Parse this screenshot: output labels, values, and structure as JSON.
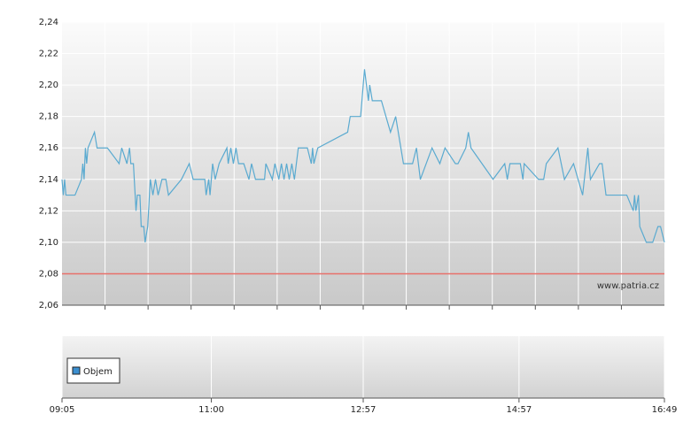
{
  "chart_data": {
    "type": "line",
    "color": "#5aaad0",
    "x": [
      "09:05",
      "09:06",
      "09:07",
      "09:08",
      "09:15",
      "09:20",
      "09:21",
      "09:22",
      "09:23",
      "09:24",
      "09:25",
      "09:30",
      "09:32",
      "09:40",
      "09:49",
      "09:51",
      "09:55",
      "09:57",
      "09:58",
      "10:00",
      "10:02",
      "10:03",
      "10:05",
      "10:06",
      "10:08",
      "10:09",
      "10:11",
      "10:13",
      "10:15",
      "10:17",
      "10:19",
      "10:22",
      "10:25",
      "10:27",
      "10:37",
      "10:43",
      "10:46",
      "10:55",
      "10:56",
      "10:58",
      "10:59",
      "11:01",
      "11:03",
      "11:06",
      "11:12",
      "11:13",
      "11:15",
      "11:17",
      "11:19",
      "11:21",
      "11:25",
      "11:29",
      "11:31",
      "11:34",
      "11:41",
      "11:42",
      "11:47",
      "11:49",
      "11:52",
      "11:54",
      "11:56",
      "11:58",
      "12:00",
      "12:02",
      "12:04",
      "12:07",
      "12:14",
      "12:17",
      "12:18",
      "12:19",
      "12:22",
      "12:45",
      "12:47",
      "12:55",
      "12:58",
      "13:01",
      "13:02",
      "13:04",
      "13:11",
      "13:18",
      "13:22",
      "13:28",
      "13:35",
      "13:38",
      "13:41",
      "13:50",
      "13:56",
      "14:00",
      "14:08",
      "14:10",
      "14:16",
      "14:18",
      "14:20",
      "14:37",
      "14:46",
      "14:48",
      "14:50",
      "14:58",
      "15:00",
      "15:01",
      "15:12",
      "15:16",
      "15:18",
      "15:27",
      "15:32",
      "15:39",
      "15:46",
      "15:50",
      "15:52",
      "15:59",
      "16:01",
      "16:04",
      "16:20",
      "16:25",
      "16:26",
      "16:27",
      "16:29",
      "16:30",
      "16:35",
      "16:40",
      "16:44",
      "16:46",
      "16:49"
    ],
    "values": [
      2.14,
      2.13,
      2.14,
      2.13,
      2.13,
      2.14,
      2.15,
      2.14,
      2.16,
      2.15,
      2.16,
      2.17,
      2.16,
      2.16,
      2.15,
      2.16,
      2.15,
      2.16,
      2.15,
      2.15,
      2.12,
      2.13,
      2.13,
      2.11,
      2.11,
      2.1,
      2.11,
      2.14,
      2.13,
      2.14,
      2.13,
      2.14,
      2.14,
      2.13,
      2.14,
      2.15,
      2.14,
      2.14,
      2.13,
      2.14,
      2.13,
      2.15,
      2.14,
      2.15,
      2.16,
      2.15,
      2.16,
      2.15,
      2.16,
      2.15,
      2.15,
      2.14,
      2.15,
      2.14,
      2.14,
      2.15,
      2.14,
      2.15,
      2.14,
      2.15,
      2.14,
      2.15,
      2.14,
      2.15,
      2.14,
      2.16,
      2.16,
      2.15,
      2.16,
      2.15,
      2.16,
      2.17,
      2.18,
      2.18,
      2.21,
      2.19,
      2.2,
      2.19,
      2.19,
      2.17,
      2.18,
      2.15,
      2.15,
      2.16,
      2.14,
      2.16,
      2.15,
      2.16,
      2.15,
      2.15,
      2.16,
      2.17,
      2.16,
      2.14,
      2.15,
      2.14,
      2.15,
      2.15,
      2.14,
      2.15,
      2.14,
      2.14,
      2.15,
      2.16,
      2.14,
      2.15,
      2.13,
      2.16,
      2.14,
      2.15,
      2.15,
      2.13,
      2.13,
      2.12,
      2.13,
      2.12,
      2.13,
      2.11,
      2.1,
      2.1,
      2.11,
      2.11,
      2.1
    ],
    "xlim": [
      "09:05",
      "16:49"
    ],
    "xticks": [
      "09:05",
      "11:00",
      "12:57",
      "14:57",
      "16:49"
    ],
    "ylim": [
      2.06,
      2.24
    ],
    "yticks": [
      {
        "value": 2.06,
        "label": "2,06"
      },
      {
        "value": 2.08,
        "label": "2,08"
      },
      {
        "value": 2.1,
        "label": "2,10"
      },
      {
        "value": 2.12,
        "label": "2,12"
      },
      {
        "value": 2.14,
        "label": "2,14"
      },
      {
        "value": 2.16,
        "label": "2,16"
      },
      {
        "value": 2.18,
        "label": "2,18"
      },
      {
        "value": 2.2,
        "label": "2,20"
      },
      {
        "value": 2.22,
        "label": "2,22"
      },
      {
        "value": 2.24,
        "label": "2,24"
      }
    ],
    "grid": true,
    "reference_line": {
      "value": 2.08,
      "color": "#e8706a"
    },
    "watermark": "www.patria.cz",
    "volume": {
      "legend": "Objem",
      "color": "#3b8fd0"
    }
  }
}
